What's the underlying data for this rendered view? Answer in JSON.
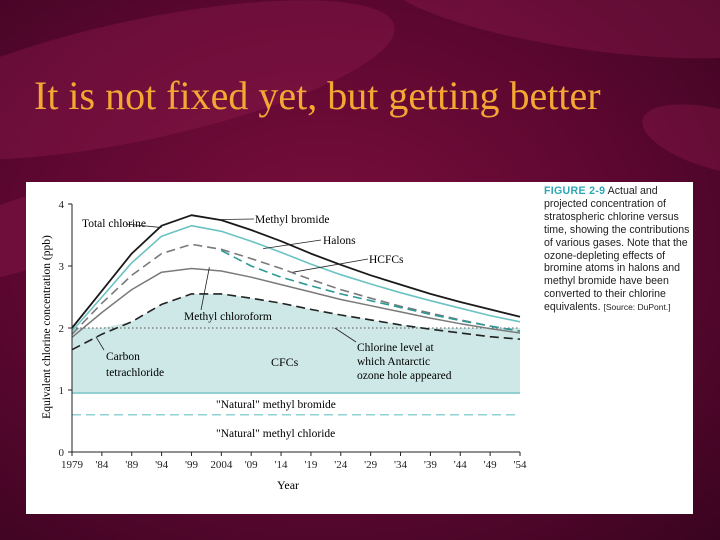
{
  "slide": {
    "title": "It is not fixed yet, but getting better"
  },
  "figure": {
    "label": "FIGURE 2-9",
    "caption": "Actual and projected concentration of stratospheric chlorine versus time, showing the contributions of various gases. Note that the ozone-depleting effects of bromine atoms in halons and methyl bromide have been converted to their chlorine equivalents.",
    "source": "[Source: DuPont.]"
  },
  "colors": {
    "background": "#5c0730",
    "title": "#f5a733",
    "fill": "#cde8e6",
    "teal": "#6cc2c2",
    "total": "#1a1a1a",
    "gray": "#7a7a7a",
    "grid": "#aaaaaa"
  },
  "chart_data": {
    "type": "area",
    "xlabel": "Year",
    "ylabel": "Equivalent chlorine concentration (ppb)",
    "xlim": [
      1979,
      2054
    ],
    "ylim": [
      0,
      4
    ],
    "xticks": [
      1979,
      1984,
      1989,
      1994,
      1999,
      2004,
      2009,
      2014,
      2019,
      2024,
      2029,
      2034,
      2039,
      2044,
      2049,
      2054
    ],
    "xtick_labels": [
      "1979",
      "'84",
      "'89",
      "'94",
      "'99",
      "2004",
      "'09",
      "'14",
      "'19",
      "'24",
      "'29",
      "'34",
      "'39",
      "'44",
      "'49",
      "'54"
    ],
    "yticks": [
      0,
      1,
      2,
      3,
      4
    ],
    "x": [
      1979,
      1984,
      1989,
      1994,
      1999,
      2004,
      2009,
      2014,
      2019,
      2024,
      2029,
      2034,
      2039,
      2044,
      2049,
      2054
    ],
    "series": [
      {
        "name": "Total chlorine",
        "style": "solid-black",
        "values": [
          2.0,
          2.6,
          3.2,
          3.65,
          3.82,
          3.74,
          3.58,
          3.4,
          3.2,
          3.02,
          2.85,
          2.7,
          2.55,
          2.42,
          2.3,
          2.18
        ]
      },
      {
        "name": "Methyl bromide",
        "style": "solid-teal",
        "values": [
          1.95,
          2.5,
          3.05,
          3.48,
          3.65,
          3.56,
          3.4,
          3.22,
          3.03,
          2.86,
          2.71,
          2.57,
          2.44,
          2.32,
          2.2,
          2.1
        ]
      },
      {
        "name": "Halons",
        "style": "dashed-gray",
        "values": [
          1.9,
          2.4,
          2.85,
          3.2,
          3.35,
          3.27,
          3.12,
          2.96,
          2.78,
          2.62,
          2.48,
          2.35,
          2.24,
          2.13,
          2.03,
          1.95
        ]
      },
      {
        "name": "HCFCs",
        "style": "solid-gray",
        "values": [
          1.85,
          2.25,
          2.62,
          2.9,
          2.96,
          2.92,
          2.82,
          2.7,
          2.58,
          2.46,
          2.36,
          2.26,
          2.16,
          2.07,
          1.99,
          1.92
        ]
      },
      {
        "name": "Methyl chloroform",
        "style": "dashed-teal",
        "values": [
          null,
          null,
          null,
          null,
          null,
          3.25,
          3.0,
          2.82,
          2.68,
          2.55,
          2.44,
          2.33,
          2.22,
          2.12,
          2.03,
          1.95
        ]
      },
      {
        "name": "Carbon tetrachloride",
        "style": "dashed-black",
        "values": [
          1.65,
          1.9,
          2.1,
          2.38,
          2.55,
          2.55,
          2.48,
          2.4,
          2.3,
          2.21,
          2.13,
          2.05,
          1.98,
          1.92,
          1.86,
          1.82
        ]
      }
    ],
    "reference_lines": [
      {
        "label": "Chlorine level at which Antarctic ozone hole appeared",
        "y": 2.0,
        "style": "dotted"
      },
      {
        "label": "\"Natural\" methyl bromide",
        "y": 0.95,
        "style": "solid-teal"
      },
      {
        "label": "\"Natural\" methyl chloride",
        "y": 0.6,
        "style": "dashed"
      }
    ],
    "area_labels": [
      "CFCs"
    ],
    "annotations": [
      "Total chlorine",
      "Methyl bromide",
      "Halons",
      "HCFCs",
      "Methyl chloroform",
      "Carbon tetrachloride",
      "CFCs",
      "Chlorine level at which Antarctic ozone hole appeared",
      "\"Natural\" methyl bromide",
      "\"Natural\" methyl chloride"
    ]
  }
}
